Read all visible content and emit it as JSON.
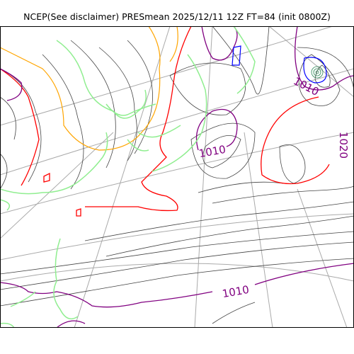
{
  "title": "NCEP(See disclaimer) PRESmean 2025/12/11 12Z FT=84 (init 0800Z)",
  "contour_labels": [
    {
      "text": "1010",
      "color": "#800080"
    },
    {
      "text": "1010",
      "color": "#800080"
    },
    {
      "text": "1010",
      "color": "#800080"
    },
    {
      "text": "1020",
      "color": "#800080"
    }
  ],
  "colors": {
    "isobar_thin": "#444444",
    "isobar_red": "#ff0000",
    "isobar_purple": "#800080",
    "isobar_blue": "#0000ff",
    "isobar_orange": "#ffa500",
    "coastline": "#90ee90",
    "grid": "#aaaaaa"
  }
}
